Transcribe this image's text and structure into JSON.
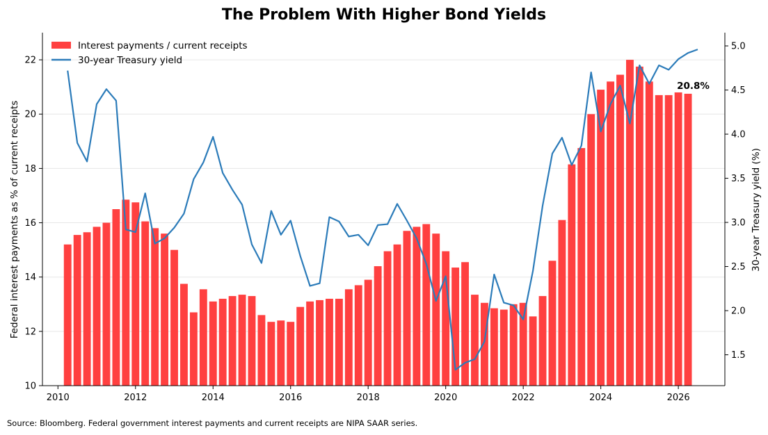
{
  "chart_data": {
    "type": "bar+line",
    "title": "The Problem With Higher Bond Yields",
    "ylabel_left": "Federal interest payments as % of current receipts",
    "ylabel_right": "30-year Treasury yield (%)",
    "xlim": [
      2009.6,
      2027.2
    ],
    "ylim_left": [
      10,
      23
    ],
    "ylim_right": [
      1.15,
      5.15
    ],
    "x_ticks": [
      2010,
      2012,
      2014,
      2016,
      2018,
      2020,
      2022,
      2024,
      2026
    ],
    "x_tick_labels": [
      "2010",
      "2012",
      "2014",
      "2016",
      "2018",
      "2020",
      "2022",
      "2024",
      "2026"
    ],
    "y_left_ticks": [
      10,
      12,
      14,
      16,
      18,
      20,
      22
    ],
    "y_left_tick_labels": [
      "10",
      "12",
      "14",
      "16",
      "18",
      "20",
      "22"
    ],
    "y_right_ticks": [
      1.5,
      2.0,
      2.5,
      3.0,
      3.5,
      4.0,
      4.5,
      5.0
    ],
    "y_right_tick_labels": [
      "1.5",
      "2.0",
      "2.5",
      "3.0",
      "3.5",
      "4.0",
      "4.5",
      "5.0"
    ],
    "grid": "horizontal",
    "legend_placement": "top-left",
    "series": [
      {
        "name": "Interest payments / current receipts",
        "type": "bar",
        "color": "#ff4040",
        "x_start": 2010.25,
        "x_step": 0.25,
        "values": [
          15.2,
          15.55,
          15.65,
          15.85,
          16.0,
          16.5,
          16.85,
          16.75,
          16.05,
          15.8,
          15.6,
          15.0,
          13.75,
          12.7,
          13.55,
          13.1,
          13.2,
          13.3,
          13.35,
          13.3,
          12.6,
          12.35,
          12.4,
          12.35,
          12.9,
          13.1,
          13.15,
          13.2,
          13.2,
          13.55,
          13.7,
          13.9,
          14.4,
          14.95,
          15.2,
          15.7,
          15.85,
          15.95,
          15.6,
          14.95,
          14.35,
          14.55,
          13.35,
          13.05,
          12.85,
          12.8,
          13.0,
          13.05,
          12.55,
          13.3,
          14.6,
          16.1,
          18.15,
          18.75,
          20.0,
          20.9,
          21.2,
          21.45,
          22.0,
          21.75,
          21.2,
          20.7,
          20.7,
          20.8,
          20.75
        ]
      },
      {
        "name": "30-year Treasury yield",
        "type": "line",
        "color": "#2b7bb9",
        "axis": "right",
        "x_start": 2010.25,
        "x_step": 0.25,
        "values": [
          4.72,
          3.9,
          3.69,
          4.34,
          4.51,
          4.38,
          2.92,
          2.89,
          3.33,
          2.76,
          2.82,
          2.94,
          3.1,
          3.49,
          3.68,
          3.97,
          3.56,
          3.37,
          3.2,
          2.75,
          2.54,
          3.13,
          2.86,
          3.02,
          2.62,
          2.28,
          2.31,
          3.06,
          3.01,
          2.84,
          2.86,
          2.74,
          2.97,
          2.98,
          3.21,
          3.02,
          2.82,
          2.53,
          2.11,
          2.39,
          1.33,
          1.41,
          1.45,
          1.65,
          2.41,
          2.09,
          2.06,
          1.9,
          2.45,
          3.19,
          3.78,
          3.96,
          3.65,
          3.87,
          4.7,
          4.03,
          4.34,
          4.55,
          4.12,
          4.78,
          4.57,
          4.78,
          4.73,
          4.85,
          4.92,
          4.96
        ]
      }
    ],
    "annotations": [
      {
        "text": "20.8%",
        "x": 2026.0,
        "y": 21.0,
        "axis": "left"
      }
    ]
  },
  "footer": {
    "source": "Source: Bloomberg. Federal government interest payments and current receipts are NIPA SAAR series."
  }
}
